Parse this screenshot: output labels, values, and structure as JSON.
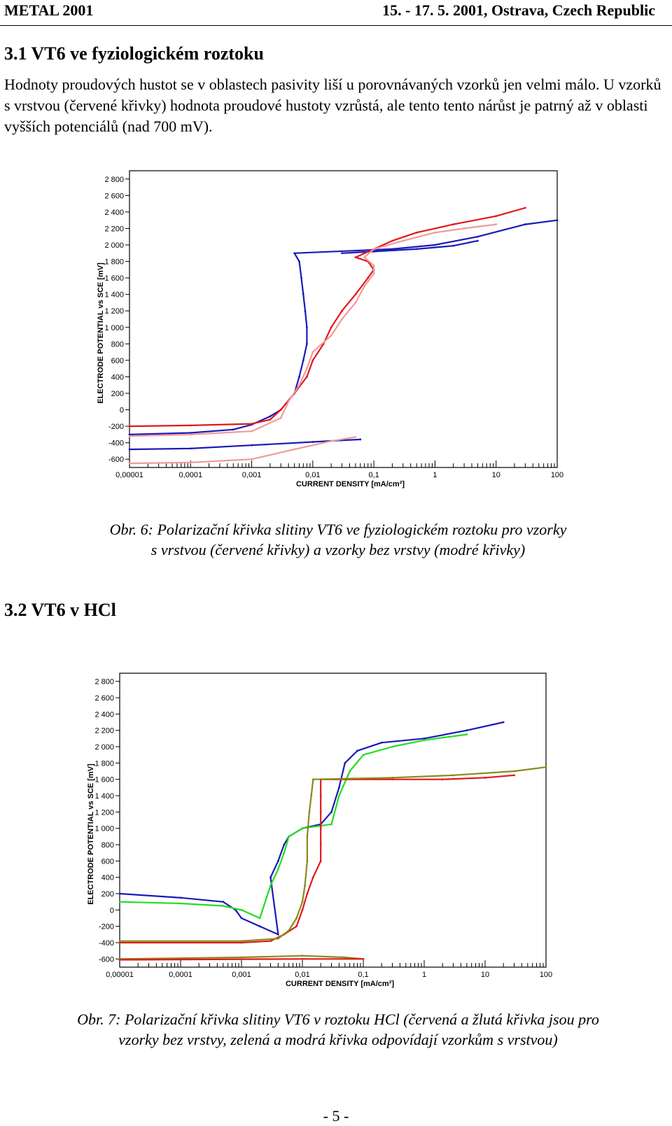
{
  "header": {
    "left": "METAL 2001",
    "right": "15. - 17. 5. 2001, Ostrava, Czech Republic"
  },
  "section1": {
    "heading": "3.1   VT6 ve fyziologickém roztoku",
    "paragraph": "Hodnoty proudových hustot se v oblastech pasivity liší u porovnávaných vzorků jen velmi málo. U vzorků s vrstvou (červené křivky) hodnota proudové hustoty vzrůstá, ale tento tento nárůst je patrný až v oblasti vyšších potenciálů (nad 700 mV).",
    "caption_line1": "Obr. 6: Polarizační křivka slitiny VT6 ve fyziologickém roztoku pro vzorky",
    "caption_line2": "s vrstvou (červené křivky) a vzorky bez vrstvy (modré křivky)"
  },
  "section2": {
    "heading": "3.2   VT6 v HCl",
    "caption_line1": "Obr. 7: Polarizační křivka slitiny VT6 v roztoku HCl (červená a žlutá křivka jsou pro",
    "caption_line2": "vzorky bez vrstvy, zelená a modrá křivka odpovídají vzorkům s vrstvou)"
  },
  "page_number": "- 5 -",
  "chart_data": [
    {
      "type": "line",
      "xlabel": "CURRENT DENSITY  [mA/cm²]",
      "ylabel": "ELECTRODE POTENTIAL vs  SCE  [mV]",
      "x_scale": "log",
      "xlim": [
        1e-05,
        100
      ],
      "ylim": [
        -600,
        2800
      ],
      "x_ticks": [
        "0,00001",
        "0,0001",
        "0,001",
        "0,01",
        "0,1",
        "1",
        "10",
        "100"
      ],
      "y_ticks": [
        "2 800",
        "2 600",
        "2 400",
        "2 200",
        "2 000",
        "1 800",
        "1 600",
        "1 400",
        "1 200",
        "1 000",
        "800",
        "600",
        "400",
        "200",
        "0",
        "-200",
        "-400",
        "-600"
      ],
      "grid": false,
      "series": [
        {
          "color": "#1a1ab8",
          "points": [
            [
              1e-05,
              -300
            ],
            [
              0.0001,
              -280
            ],
            [
              0.0005,
              -240
            ],
            [
              0.001,
              -180
            ],
            [
              0.002,
              -80
            ],
            [
              0.003,
              0
            ],
            [
              0.005,
              200
            ],
            [
              0.006,
              400
            ],
            [
              0.007,
              600
            ],
            [
              0.008,
              800
            ],
            [
              0.008,
              1000
            ],
            [
              0.0075,
              1200
            ],
            [
              0.007,
              1400
            ],
            [
              0.0065,
              1600
            ],
            [
              0.006,
              1800
            ],
            [
              0.005,
              1900
            ],
            [
              0.2,
              1950
            ],
            [
              1,
              2000
            ],
            [
              5,
              2100
            ],
            [
              30,
              2250
            ],
            [
              100,
              2300
            ]
          ]
        },
        {
          "color": "#1a1ab8",
          "points": [
            [
              1e-05,
              -480
            ],
            [
              0.0001,
              -470
            ],
            [
              0.001,
              -430
            ],
            [
              0.01,
              -390
            ],
            [
              0.03,
              -370
            ],
            [
              0.06,
              -360
            ]
          ]
        },
        {
          "color": "#1a1ab8",
          "points": [
            [
              0.03,
              1900
            ],
            [
              0.1,
              1920
            ],
            [
              0.5,
              1950
            ],
            [
              2,
              1990
            ],
            [
              5,
              2050
            ]
          ]
        },
        {
          "color": "#e0181c",
          "points": [
            [
              1e-05,
              -200
            ],
            [
              0.0001,
              -190
            ],
            [
              0.001,
              -170
            ],
            [
              0.002,
              -120
            ],
            [
              0.003,
              0
            ],
            [
              0.005,
              200
            ],
            [
              0.008,
              400
            ],
            [
              0.01,
              600
            ],
            [
              0.015,
              800
            ],
            [
              0.02,
              1000
            ],
            [
              0.03,
              1200
            ],
            [
              0.05,
              1400
            ],
            [
              0.08,
              1600
            ],
            [
              0.1,
              1700
            ],
            [
              0.08,
              1800
            ],
            [
              0.05,
              1850
            ],
            [
              0.1,
              1950
            ],
            [
              0.2,
              2050
            ],
            [
              0.5,
              2150
            ],
            [
              2,
              2250
            ],
            [
              10,
              2350
            ],
            [
              30,
              2450
            ]
          ]
        },
        {
          "color": "#f09a9a",
          "points": [
            [
              1e-05,
              -320
            ],
            [
              0.0001,
              -300
            ],
            [
              0.001,
              -260
            ],
            [
              0.003,
              -100
            ],
            [
              0.004,
              100
            ],
            [
              0.006,
              300
            ],
            [
              0.008,
              500
            ],
            [
              0.01,
              700
            ],
            [
              0.02,
              900
            ],
            [
              0.03,
              1100
            ],
            [
              0.05,
              1300
            ],
            [
              0.07,
              1500
            ],
            [
              0.1,
              1650
            ],
            [
              0.1,
              1750
            ],
            [
              0.07,
              1850
            ],
            [
              0.1,
              1950
            ],
            [
              0.3,
              2050
            ],
            [
              1,
              2150
            ],
            [
              3,
              2200
            ],
            [
              10,
              2250
            ]
          ]
        },
        {
          "color": "#f09a9a",
          "points": [
            [
              1e-05,
              -650
            ],
            [
              0.0001,
              -640
            ],
            [
              0.001,
              -600
            ],
            [
              0.005,
              -480
            ],
            [
              0.02,
              -380
            ],
            [
              0.05,
              -330
            ]
          ]
        }
      ]
    },
    {
      "type": "line",
      "xlabel": "CURRENT DENSITY  [mA/cm²]",
      "ylabel": "ELECTRODE POTENTIAL vs  SCE  [mV]",
      "x_scale": "log",
      "xlim": [
        1e-05,
        100
      ],
      "ylim": [
        -600,
        2800
      ],
      "x_ticks": [
        "0,00001",
        "0,0001",
        "0,001",
        "0,01",
        "0,1",
        "1",
        "10",
        "100"
      ],
      "y_ticks": [
        "2 800",
        "2 600",
        "2 400",
        "2 200",
        "2 000",
        "1 800",
        "1 600",
        "1 400",
        "1 200",
        "1 000",
        "800",
        "600",
        "400",
        "200",
        "0",
        "-200",
        "-400",
        "-600"
      ],
      "grid": false,
      "series": [
        {
          "color": "#1a1ab8",
          "points": [
            [
              1e-05,
              200
            ],
            [
              0.0001,
              150
            ],
            [
              0.0005,
              100
            ],
            [
              0.0008,
              0
            ],
            [
              0.001,
              -100
            ],
            [
              0.002,
              -200
            ],
            [
              0.004,
              -300
            ],
            [
              0.003,
              400
            ],
            [
              0.004,
              600
            ],
            [
              0.005,
              800
            ],
            [
              0.006,
              900
            ],
            [
              0.01,
              1000
            ],
            [
              0.02,
              1050
            ],
            [
              0.03,
              1200
            ],
            [
              0.04,
              1500
            ],
            [
              0.05,
              1800
            ],
            [
              0.08,
              1950
            ],
            [
              0.2,
              2050
            ],
            [
              1,
              2100
            ],
            [
              5,
              2200
            ],
            [
              20,
              2300
            ]
          ]
        },
        {
          "color": "#22dd22",
          "points": [
            [
              1e-05,
              100
            ],
            [
              0.0001,
              80
            ],
            [
              0.0005,
              50
            ],
            [
              0.001,
              0
            ],
            [
              0.002,
              -100
            ],
            [
              0.003,
              300
            ],
            [
              0.004,
              500
            ],
            [
              0.005,
              700
            ],
            [
              0.006,
              900
            ],
            [
              0.01,
              1000
            ],
            [
              0.03,
              1050
            ],
            [
              0.04,
              1400
            ],
            [
              0.06,
              1700
            ],
            [
              0.1,
              1900
            ],
            [
              0.3,
              2000
            ],
            [
              1,
              2080
            ],
            [
              5,
              2150
            ]
          ]
        },
        {
          "color": "#e0181c",
          "points": [
            [
              1e-05,
              -400
            ],
            [
              0.001,
              -400
            ],
            [
              0.003,
              -380
            ],
            [
              0.005,
              -300
            ],
            [
              0.008,
              -200
            ],
            [
              0.01,
              0
            ],
            [
              0.012,
              200
            ],
            [
              0.015,
              400
            ],
            [
              0.02,
              600
            ],
            [
              0.02,
              800
            ],
            [
              0.02,
              1000
            ],
            [
              0.02,
              1200
            ],
            [
              0.02,
              1400
            ],
            [
              0.02,
              1600
            ],
            [
              0.3,
              1600
            ],
            [
              2,
              1600
            ],
            [
              10,
              1620
            ],
            [
              30,
              1650
            ]
          ]
        },
        {
          "color": "#8a8a1a",
          "points": [
            [
              1e-05,
              -380
            ],
            [
              0.001,
              -380
            ],
            [
              0.004,
              -350
            ],
            [
              0.006,
              -250
            ],
            [
              0.008,
              -100
            ],
            [
              0.01,
              100
            ],
            [
              0.011,
              300
            ],
            [
              0.012,
              600
            ],
            [
              0.012,
              900
            ],
            [
              0.013,
              1200
            ],
            [
              0.014,
              1400
            ],
            [
              0.015,
              1600
            ],
            [
              0.3,
              1620
            ],
            [
              3,
              1650
            ],
            [
              30,
              1700
            ],
            [
              100,
              1750
            ]
          ]
        },
        {
          "color": "#8a8a1a",
          "points": [
            [
              1e-05,
              -600
            ],
            [
              0.001,
              -580
            ],
            [
              0.01,
              -560
            ],
            [
              0.05,
              -580
            ],
            [
              0.1,
              -600
            ]
          ]
        },
        {
          "color": "#e0181c",
          "points": [
            [
              1e-05,
              -610
            ],
            [
              0.01,
              -600
            ],
            [
              0.1,
              -600
            ]
          ]
        }
      ]
    }
  ]
}
